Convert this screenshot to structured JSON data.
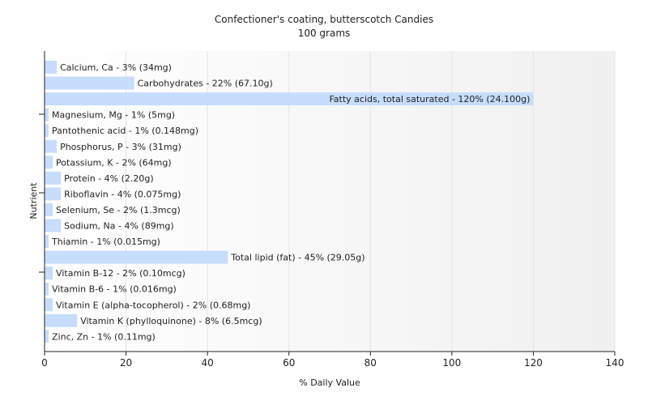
{
  "chart_data": {
    "type": "bar",
    "orientation": "horizontal",
    "title": "Confectioner's coating, butterscotch Candies",
    "subtitle": "100 grams",
    "xlabel": "% Daily Value",
    "ylabel": "Nutrient",
    "xlim": [
      0,
      140
    ],
    "xticks": [
      0,
      20,
      40,
      60,
      80,
      100,
      120,
      140
    ],
    "grid": true,
    "bar_color": "#c6ddfb",
    "categories": [
      "Calcium, Ca",
      "Carbohydrates",
      "Fatty acids, total saturated",
      "Magnesium, Mg",
      "Pantothenic acid",
      "Phosphorus, P",
      "Potassium, K",
      "Protein",
      "Riboflavin",
      "Selenium, Se",
      "Sodium, Na",
      "Thiamin",
      "Total lipid (fat)",
      "Vitamin B-12",
      "Vitamin B-6",
      "Vitamin E (alpha-tocopherol)",
      "Vitamin K (phylloquinone)",
      "Zinc, Zn"
    ],
    "values": [
      3,
      22,
      120,
      1,
      1,
      3,
      2,
      4,
      4,
      2,
      4,
      1,
      45,
      2,
      1,
      2,
      8,
      1
    ],
    "labels": [
      "Calcium, Ca - 3% (34mg)",
      "Carbohydrates - 22% (67.10g)",
      "Fatty acids, total saturated - 120% (24.100g)",
      "Magnesium, Mg - 1% (5mg)",
      "Pantothenic acid - 1% (0.148mg)",
      "Phosphorus, P - 3% (31mg)",
      "Potassium, K - 2% (64mg)",
      "Protein - 4% (2.20g)",
      "Riboflavin - 4% (0.075mg)",
      "Selenium, Se - 2% (1.3mcg)",
      "Sodium, Na - 4% (89mg)",
      "Thiamin - 1% (0.015mg)",
      "Total lipid (fat) - 45% (29.05g)",
      "Vitamin B-12 - 2% (0.10mcg)",
      "Vitamin B-6 - 1% (0.016mg)",
      "Vitamin E (alpha-tocopherol) - 2% (0.68mg)",
      "Vitamin K (phylloquinone) - 8% (6.5mcg)",
      "Zinc, Zn - 1% (0.11mg)"
    ]
  }
}
